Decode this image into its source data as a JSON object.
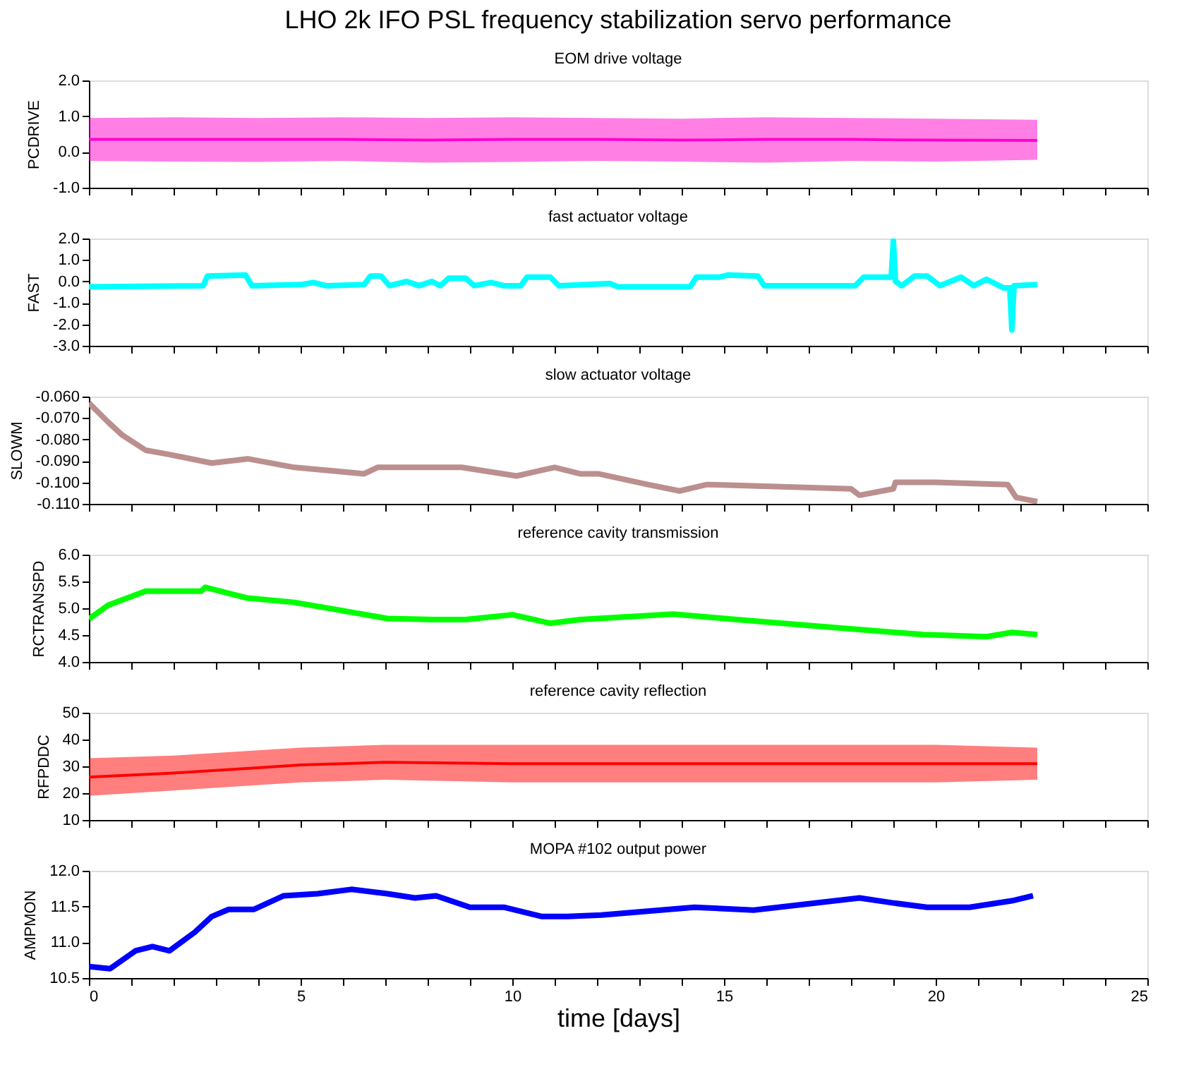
{
  "chart_data": [
    {
      "type": "line",
      "title": "LHO 2k IFO PSL frequency stabilization servo performance",
      "subtitle": "EOM drive voltage",
      "ylabel": "PCDRIVE",
      "tick_labels": "y",
      "xlim": [
        0,
        25
      ],
      "xticks": [
        0,
        {
          "value": 1,
          "label": null
        },
        {
          "value": 2,
          "label": null
        },
        {
          "value": 3,
          "label": null
        },
        {
          "value": 4,
          "label": null
        },
        5,
        {
          "value": 6,
          "label": null
        },
        {
          "value": 7,
          "label": null
        },
        {
          "value": 8,
          "label": null
        },
        {
          "value": 9,
          "label": null
        },
        10,
        {
          "value": 11,
          "label": null
        },
        {
          "value": 12,
          "label": null
        },
        {
          "value": 13,
          "label": null
        },
        {
          "value": 14,
          "label": null
        },
        15,
        {
          "value": 16,
          "label": null
        },
        {
          "value": 17,
          "label": null
        },
        {
          "value": 18,
          "label": null
        },
        {
          "value": 19,
          "label": null
        },
        20,
        {
          "value": 21,
          "label": null
        },
        {
          "value": 22,
          "label": null
        },
        {
          "value": 23,
          "label": null
        },
        {
          "value": 24,
          "label": null
        },
        25
      ],
      "ylim": [
        -1,
        2
      ],
      "yticks": [
        {
          "value": -1,
          "label": "-1.0"
        },
        {
          "value": 0,
          "label": "0.0"
        },
        {
          "value": 1,
          "label": "1.0"
        },
        {
          "value": 2,
          "label": "2.0"
        }
      ],
      "series": [
        {
          "color": "#ff00cc",
          "x": [
            0,
            2,
            4,
            6,
            8,
            10,
            12,
            14,
            16,
            18,
            20,
            22.4
          ],
          "values": [
            0.35,
            0.35,
            0.35,
            0.35,
            0.33,
            0.35,
            0.35,
            0.33,
            0.35,
            0.35,
            0.33,
            0.32
          ],
          "lower": [
            -0.25,
            -0.27,
            -0.28,
            -0.25,
            -0.3,
            -0.28,
            -0.25,
            -0.27,
            -0.3,
            -0.25,
            -0.27,
            -0.22
          ],
          "upper": [
            0.95,
            0.97,
            0.95,
            0.97,
            0.95,
            0.97,
            0.95,
            0.93,
            0.97,
            0.95,
            0.93,
            0.9
          ]
        }
      ]
    },
    {
      "type": "line",
      "title": "fast actuator voltage",
      "ylabel": "FAST",
      "tick_labels": "y",
      "xlim": [
        0,
        25
      ],
      "xticks": [
        0,
        {
          "value": 1,
          "label": null
        },
        {
          "value": 2,
          "label": null
        },
        {
          "value": 3,
          "label": null
        },
        {
          "value": 4,
          "label": null
        },
        5,
        {
          "value": 6,
          "label": null
        },
        {
          "value": 7,
          "label": null
        },
        {
          "value": 8,
          "label": null
        },
        {
          "value": 9,
          "label": null
        },
        10,
        {
          "value": 11,
          "label": null
        },
        {
          "value": 12,
          "label": null
        },
        {
          "value": 13,
          "label": null
        },
        {
          "value": 14,
          "label": null
        },
        15,
        {
          "value": 16,
          "label": null
        },
        {
          "value": 17,
          "label": null
        },
        {
          "value": 18,
          "label": null
        },
        {
          "value": 19,
          "label": null
        },
        20,
        {
          "value": 21,
          "label": null
        },
        {
          "value": 22,
          "label": null
        },
        {
          "value": 23,
          "label": null
        },
        {
          "value": 24,
          "label": null
        },
        25
      ],
      "ylim": [
        -3,
        2
      ],
      "yticks": [
        {
          "value": -3,
          "label": "-3.0"
        },
        {
          "value": -2,
          "label": "-2.0"
        },
        {
          "value": -1,
          "label": "-1.0"
        },
        {
          "value": 0,
          "label": "0.0"
        },
        {
          "value": 1,
          "label": "1.0"
        },
        {
          "value": 2,
          "label": "2.0"
        }
      ],
      "series": [
        {
          "color": "#00ffff",
          "x": [
            0,
            2.7,
            2.8,
            3.7,
            3.85,
            5.0,
            5.3,
            5.6,
            6.5,
            6.65,
            6.9,
            7.1,
            7.5,
            7.8,
            8.1,
            8.3,
            8.5,
            8.9,
            9.1,
            9.5,
            9.8,
            10.2,
            10.35,
            10.9,
            11.1,
            12.3,
            12.5,
            14.2,
            14.35,
            14.9,
            15.1,
            15.8,
            15.95,
            18.1,
            18.3,
            18.95,
            19.0,
            19.05,
            19.2,
            19.5,
            19.8,
            20.1,
            20.6,
            20.9,
            21.2,
            21.6,
            21.75,
            21.8,
            21.85,
            22.4
          ],
          "values": [
            -0.25,
            -0.2,
            0.25,
            0.3,
            -0.2,
            -0.15,
            -0.05,
            -0.2,
            -0.15,
            0.25,
            0.25,
            -0.2,
            0.0,
            -0.2,
            0.0,
            -0.2,
            0.15,
            0.15,
            -0.2,
            -0.05,
            -0.2,
            -0.2,
            0.2,
            0.2,
            -0.2,
            -0.1,
            -0.25,
            -0.25,
            0.2,
            0.2,
            0.3,
            0.25,
            -0.2,
            -0.2,
            0.2,
            0.2,
            1.9,
            0.0,
            -0.2,
            0.25,
            0.25,
            -0.2,
            0.2,
            -0.2,
            0.1,
            -0.3,
            -0.3,
            -2.26,
            -0.2,
            -0.15
          ]
        }
      ]
    },
    {
      "type": "line",
      "title": "slow actuator voltage",
      "ylabel": "SLOWM",
      "tick_labels": "y",
      "xlim": [
        0,
        25
      ],
      "xticks": [
        0,
        {
          "value": 1,
          "label": null
        },
        {
          "value": 2,
          "label": null
        },
        {
          "value": 3,
          "label": null
        },
        {
          "value": 4,
          "label": null
        },
        5,
        {
          "value": 6,
          "label": null
        },
        {
          "value": 7,
          "label": null
        },
        {
          "value": 8,
          "label": null
        },
        {
          "value": 9,
          "label": null
        },
        10,
        {
          "value": 11,
          "label": null
        },
        {
          "value": 12,
          "label": null
        },
        {
          "value": 13,
          "label": null
        },
        {
          "value": 14,
          "label": null
        },
        15,
        {
          "value": 16,
          "label": null
        },
        {
          "value": 17,
          "label": null
        },
        {
          "value": 18,
          "label": null
        },
        {
          "value": 19,
          "label": null
        },
        20,
        {
          "value": 21,
          "label": null
        },
        {
          "value": 22,
          "label": null
        },
        {
          "value": 23,
          "label": null
        },
        {
          "value": 24,
          "label": null
        },
        25
      ],
      "ylim": [
        -0.11,
        -0.06
      ],
      "yticks": [
        {
          "value": -0.11,
          "label": "-0.110"
        },
        {
          "value": -0.1,
          "label": "-0.100"
        },
        {
          "value": -0.09,
          "label": "-0.090"
        },
        {
          "value": -0.08,
          "label": "-0.080"
        },
        {
          "value": -0.07,
          "label": "-0.070"
        },
        {
          "value": -0.06,
          "label": "-0.060"
        }
      ],
      "series": [
        {
          "color": "#bc8f8f",
          "x": [
            0,
            0.46,
            0.79,
            1.34,
            1.9,
            2.9,
            3.75,
            4.85,
            6.5,
            6.82,
            8.8,
            10.1,
            11.0,
            11.6,
            12.03,
            13.2,
            13.95,
            14.6,
            18.0,
            18.2,
            19.0,
            19.05,
            20.0,
            21.7,
            21.9,
            22.4
          ],
          "values": [
            -0.063,
            -0.072,
            -0.078,
            -0.085,
            -0.087,
            -0.091,
            -0.089,
            -0.093,
            -0.096,
            -0.093,
            -0.093,
            -0.097,
            -0.093,
            -0.096,
            -0.096,
            -0.101,
            -0.104,
            -0.101,
            -0.103,
            -0.106,
            -0.103,
            -0.1,
            -0.1,
            -0.101,
            -0.107,
            -0.109
          ]
        }
      ]
    },
    {
      "type": "line",
      "title": "reference cavity transmission",
      "ylabel": "RCTRANSPD",
      "tick_labels": "y",
      "xlim": [
        0,
        25
      ],
      "xticks": [
        0,
        {
          "value": 1,
          "label": null
        },
        {
          "value": 2,
          "label": null
        },
        {
          "value": 3,
          "label": null
        },
        {
          "value": 4,
          "label": null
        },
        5,
        {
          "value": 6,
          "label": null
        },
        {
          "value": 7,
          "label": null
        },
        {
          "value": 8,
          "label": null
        },
        {
          "value": 9,
          "label": null
        },
        10,
        {
          "value": 11,
          "label": null
        },
        {
          "value": 12,
          "label": null
        },
        {
          "value": 13,
          "label": null
        },
        {
          "value": 14,
          "label": null
        },
        15,
        {
          "value": 16,
          "label": null
        },
        {
          "value": 17,
          "label": null
        },
        {
          "value": 18,
          "label": null
        },
        {
          "value": 19,
          "label": null
        },
        20,
        {
          "value": 21,
          "label": null
        },
        {
          "value": 22,
          "label": null
        },
        {
          "value": 23,
          "label": null
        },
        {
          "value": 24,
          "label": null
        },
        25
      ],
      "ylim": [
        4,
        6
      ],
      "yticks": [
        {
          "value": 4,
          "label": "4.0"
        },
        {
          "value": 4.5,
          "label": "4.5"
        },
        {
          "value": 5,
          "label": "5.0"
        },
        {
          "value": 5.5,
          "label": "5.5"
        },
        {
          "value": 6,
          "label": "6.0"
        }
      ],
      "series": [
        {
          "color": "#00ff00",
          "x": [
            0,
            0.46,
            1.34,
            2.65,
            2.75,
            3.75,
            4.85,
            5.95,
            7.05,
            8.15,
            8.9,
            10.0,
            10.9,
            11.6,
            13.8,
            15.3,
            17.6,
            19.7,
            21.2,
            21.8,
            22.4
          ],
          "values": [
            4.8,
            5.06,
            5.32,
            5.32,
            5.39,
            5.19,
            5.11,
            4.96,
            4.81,
            4.79,
            4.79,
            4.88,
            4.72,
            4.79,
            4.89,
            4.79,
            4.64,
            4.51,
            4.47,
            4.55,
            4.51
          ]
        }
      ]
    },
    {
      "type": "line",
      "title": "reference cavity reflection",
      "ylabel": "RFPDDC",
      "tick_labels": "y",
      "xlim": [
        0,
        25
      ],
      "xticks": [
        0,
        {
          "value": 1,
          "label": null
        },
        {
          "value": 2,
          "label": null
        },
        {
          "value": 3,
          "label": null
        },
        {
          "value": 4,
          "label": null
        },
        5,
        {
          "value": 6,
          "label": null
        },
        {
          "value": 7,
          "label": null
        },
        {
          "value": 8,
          "label": null
        },
        {
          "value": 9,
          "label": null
        },
        10,
        {
          "value": 11,
          "label": null
        },
        {
          "value": 12,
          "label": null
        },
        {
          "value": 13,
          "label": null
        },
        {
          "value": 14,
          "label": null
        },
        15,
        {
          "value": 16,
          "label": null
        },
        {
          "value": 17,
          "label": null
        },
        {
          "value": 18,
          "label": null
        },
        {
          "value": 19,
          "label": null
        },
        20,
        {
          "value": 21,
          "label": null
        },
        {
          "value": 22,
          "label": null
        },
        {
          "value": 23,
          "label": null
        },
        {
          "value": 24,
          "label": null
        },
        25
      ],
      "ylim": [
        10,
        50
      ],
      "yticks": [
        10,
        20,
        30,
        40,
        50
      ],
      "series": [
        {
          "color": "#ff0000",
          "x": [
            0,
            2,
            4,
            5,
            7,
            10,
            15,
            20,
            22.4
          ],
          "values": [
            26,
            27.5,
            29.5,
            30.5,
            31.5,
            31,
            31,
            31,
            31
          ],
          "lower": [
            19,
            21,
            23,
            24,
            25,
            24,
            24,
            24,
            25
          ],
          "upper": [
            33,
            34,
            36,
            37,
            38,
            38,
            38,
            38,
            37
          ]
        }
      ]
    },
    {
      "type": "line",
      "title": "MOPA #102 output power",
      "xlabel": "time [days]",
      "ylabel": "AMPMON",
      "xlim": [
        0,
        25
      ],
      "xticks": [
        0,
        {
          "value": 1,
          "label": null
        },
        {
          "value": 2,
          "label": null
        },
        {
          "value": 3,
          "label": null
        },
        {
          "value": 4,
          "label": null
        },
        5,
        {
          "value": 6,
          "label": null
        },
        {
          "value": 7,
          "label": null
        },
        {
          "value": 8,
          "label": null
        },
        {
          "value": 9,
          "label": null
        },
        10,
        {
          "value": 11,
          "label": null
        },
        {
          "value": 12,
          "label": null
        },
        {
          "value": 13,
          "label": null
        },
        {
          "value": 14,
          "label": null
        },
        15,
        {
          "value": 16,
          "label": null
        },
        {
          "value": 17,
          "label": null
        },
        {
          "value": 18,
          "label": null
        },
        {
          "value": 19,
          "label": null
        },
        20,
        {
          "value": 21,
          "label": null
        },
        {
          "value": 22,
          "label": null
        },
        {
          "value": 23,
          "label": null
        },
        {
          "value": 24,
          "label": null
        },
        25
      ],
      "ylim": [
        10.5,
        12
      ],
      "yticks": [
        10.5,
        {
          "value": 11,
          "label": "11.0"
        },
        11.5,
        {
          "value": 12,
          "label": "12.0"
        }
      ],
      "series": [
        {
          "color": "#0000ff",
          "x": [
            0,
            0.5,
            1.1,
            1.5,
            1.9,
            2.5,
            2.9,
            3.3,
            3.9,
            4.6,
            5.4,
            6.2,
            7.05,
            7.7,
            8.2,
            9.0,
            9.8,
            10.7,
            11.3,
            12.1,
            14.3,
            15.7,
            18.2,
            19.0,
            19.8,
            20.8,
            21.8,
            22.3
          ],
          "values": [
            10.66,
            10.63,
            10.88,
            10.94,
            10.88,
            11.14,
            11.36,
            11.46,
            11.46,
            11.65,
            11.68,
            11.74,
            11.68,
            11.62,
            11.65,
            11.49,
            11.49,
            11.36,
            11.36,
            11.38,
            11.49,
            11.45,
            11.62,
            11.55,
            11.49,
            11.49,
            11.58,
            11.65
          ]
        }
      ]
    }
  ]
}
